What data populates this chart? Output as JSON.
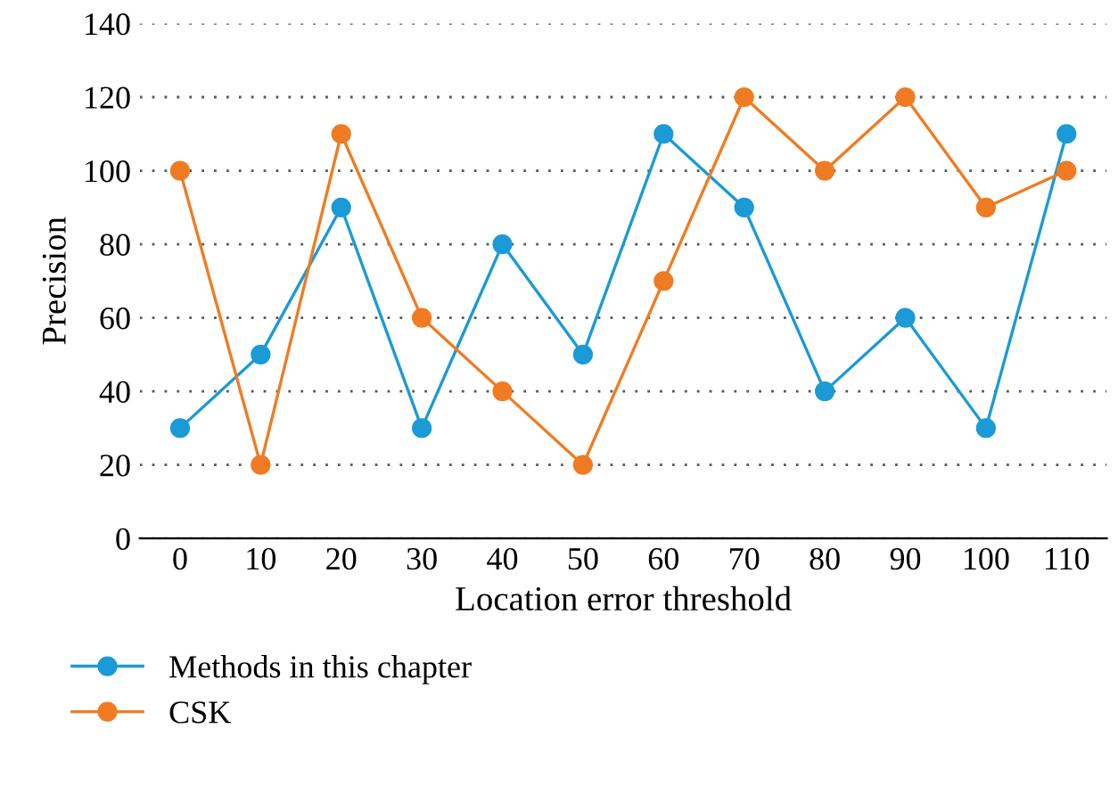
{
  "chart_data": {
    "type": "line",
    "xlabel": "Location error threshold",
    "ylabel": "Precision",
    "categories": [
      "0",
      "10",
      "20",
      "30",
      "40",
      "50",
      "60",
      "70",
      "80",
      "90",
      "100",
      "110"
    ],
    "series": [
      {
        "name": "Methods in this chapter",
        "color": "#1a9ad6",
        "values": [
          30,
          50,
          90,
          30,
          80,
          50,
          110,
          90,
          40,
          60,
          30,
          110
        ]
      },
      {
        "name": "CSK",
        "color": "#f07b22",
        "values": [
          100,
          20,
          110,
          60,
          40,
          20,
          70,
          120,
          100,
          120,
          90,
          100
        ]
      }
    ],
    "ylim": [
      0,
      140
    ],
    "yticks": [
      0,
      20,
      40,
      60,
      80,
      100,
      120,
      140
    ],
    "grid": "y",
    "legend": "bottom left",
    "marker": "circle",
    "line_style": "solid"
  }
}
